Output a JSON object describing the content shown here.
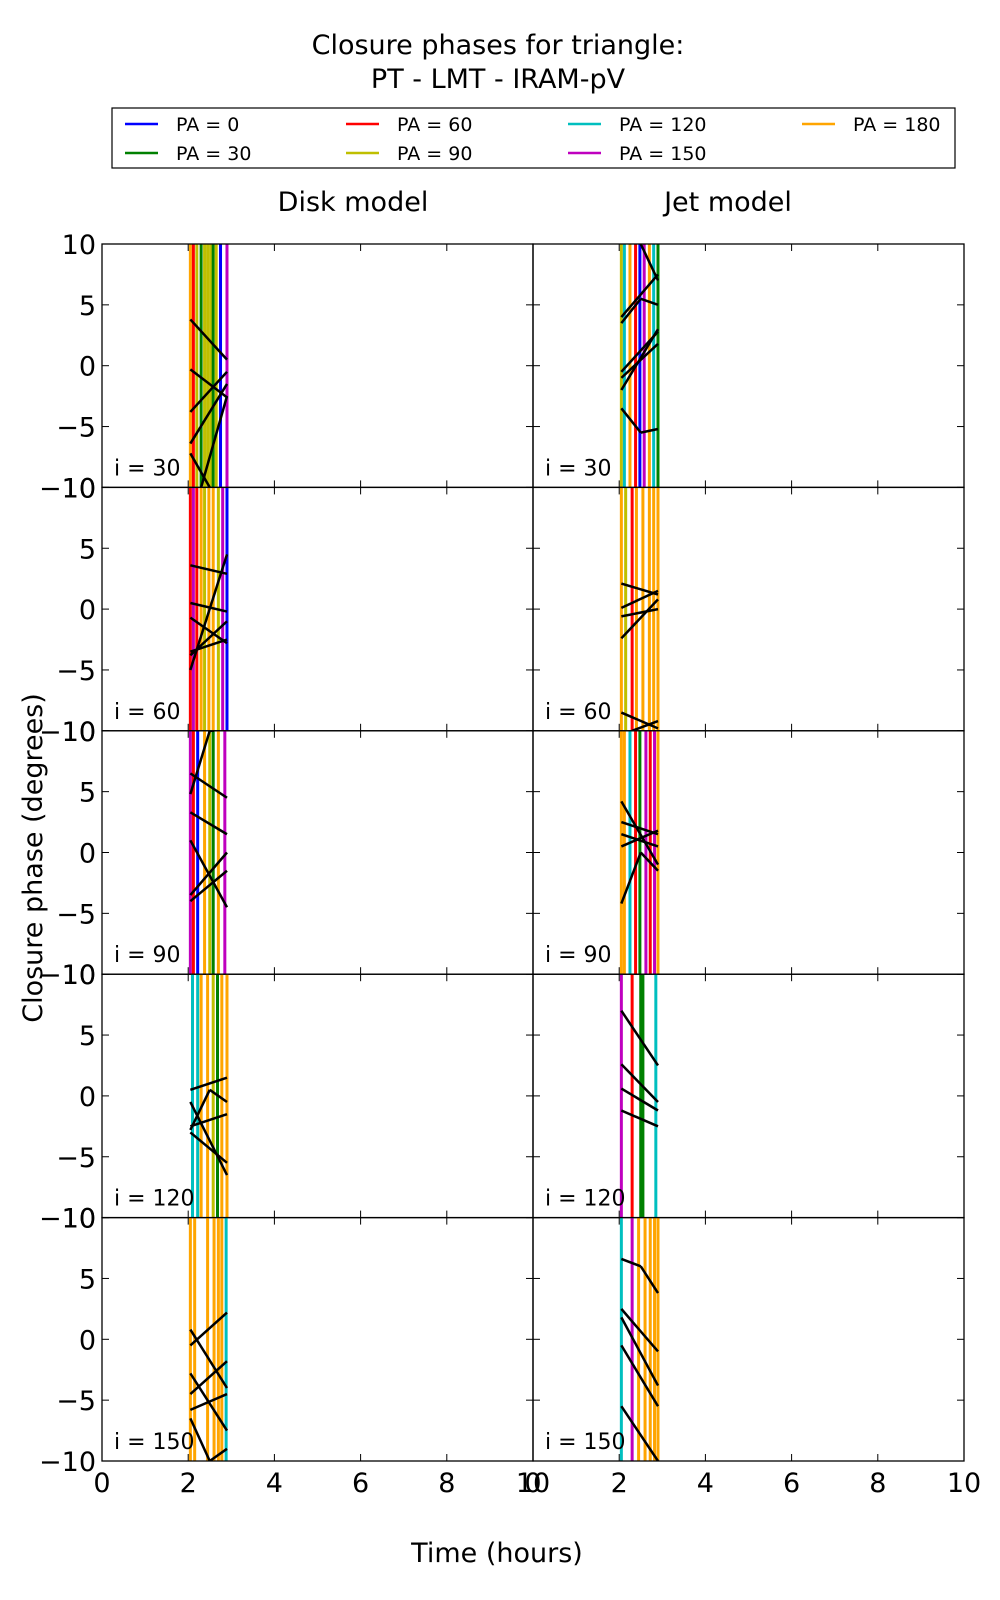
{
  "chart_data": {
    "type": "line",
    "title_lines": [
      "Closure phases for triangle:",
      "PT - LMT - IRAM-pV"
    ],
    "xlabel": "Time (hours)",
    "ylabel": "Closure phase (degrees)",
    "xlim": [
      0,
      10
    ],
    "ylim": [
      -10,
      10
    ],
    "xticks": [
      0,
      2,
      4,
      6,
      8,
      10
    ],
    "yticks": [
      10,
      5,
      0,
      -5,
      -10
    ],
    "grid": false,
    "legend": {
      "placement": "top",
      "entries": [
        {
          "label": "PA = 0",
          "color": "#0000ff"
        },
        {
          "label": "PA = 30",
          "color": "#008000"
        },
        {
          "label": "PA = 60",
          "color": "#ff0000"
        },
        {
          "label": "PA = 90",
          "color": "#bfbf00"
        },
        {
          "label": "PA = 120",
          "color": "#00bfbf"
        },
        {
          "label": "PA = 150",
          "color": "#bf00bf"
        },
        {
          "label": "PA = 180",
          "color": "#ffa500"
        }
      ]
    },
    "columns": [
      "Disk model",
      "Jet model"
    ],
    "rows": [
      "i = 30",
      "i = 60",
      "i = 90",
      "i = 120",
      "i = 150"
    ],
    "panels": [
      {
        "row": 0,
        "col": 0,
        "vlines": [
          [
            2.05,
            "#ffa500"
          ],
          [
            2.12,
            "#ff0000"
          ],
          [
            2.2,
            "#bfbf00"
          ],
          [
            2.3,
            "#008000"
          ],
          [
            2.38,
            "#bfbf00"
          ],
          [
            2.45,
            "#bfbf00"
          ],
          [
            2.52,
            "#bfbf00"
          ],
          [
            2.58,
            "#008000"
          ],
          [
            2.65,
            "#bfbf00"
          ],
          [
            2.75,
            "#0000ff"
          ],
          [
            2.9,
            "#bf00bf"
          ]
        ],
        "segments": [
          [
            2.05,
            3.8,
            2.9,
            0.5
          ],
          [
            2.05,
            -0.3,
            2.9,
            -2.6
          ],
          [
            2.05,
            -3.8,
            2.9,
            -0.5
          ],
          [
            2.05,
            -6.4,
            2.9,
            -1.5
          ],
          [
            2.05,
            -7.2,
            2.5,
            -10
          ],
          [
            2.3,
            -10,
            2.9,
            -2.5
          ]
        ]
      },
      {
        "row": 0,
        "col": 1,
        "vlines": [
          [
            2.05,
            "#bfbf00"
          ],
          [
            2.12,
            "#00bfbf"
          ],
          [
            2.25,
            "#ffa500"
          ],
          [
            2.38,
            "#ff0000"
          ],
          [
            2.48,
            "#0000ff"
          ],
          [
            2.58,
            "#bf00bf"
          ],
          [
            2.7,
            "#ffa500"
          ],
          [
            2.8,
            "#00bfbf"
          ],
          [
            2.9,
            "#008000"
          ]
        ],
        "segments": [
          [
            2.05,
            4.0,
            2.9,
            7.5
          ],
          [
            2.05,
            3.5,
            2.5,
            5.5
          ],
          [
            2.5,
            5.5,
            2.9,
            5.0
          ],
          [
            2.05,
            -0.5,
            2.9,
            2.8
          ],
          [
            2.05,
            -1.0,
            2.9,
            1.8
          ],
          [
            2.05,
            -2.0,
            2.9,
            3.0
          ],
          [
            2.05,
            -3.5,
            2.5,
            -5.5
          ],
          [
            2.5,
            -5.5,
            2.9,
            -5.2
          ],
          [
            2.5,
            10,
            2.9,
            7.0
          ]
        ]
      },
      {
        "row": 1,
        "col": 0,
        "vlines": [
          [
            2.05,
            "#ff0000"
          ],
          [
            2.12,
            "#bf00bf"
          ],
          [
            2.2,
            "#ff0000"
          ],
          [
            2.3,
            "#ffa500"
          ],
          [
            2.38,
            "#bfbf00"
          ],
          [
            2.48,
            "#ffa500"
          ],
          [
            2.58,
            "#ffa500"
          ],
          [
            2.7,
            "#bfbf00"
          ],
          [
            2.8,
            "#bf00bf"
          ],
          [
            2.9,
            "#0000ff"
          ]
        ],
        "segments": [
          [
            2.05,
            3.6,
            2.9,
            2.9
          ],
          [
            2.05,
            0.5,
            2.9,
            -0.2
          ],
          [
            2.05,
            -0.7,
            2.9,
            -2.8
          ],
          [
            2.05,
            -3.8,
            2.9,
            -1.0
          ],
          [
            2.05,
            -3.5,
            2.9,
            -2.5
          ],
          [
            2.05,
            -5.0,
            2.9,
            4.5
          ]
        ]
      },
      {
        "row": 1,
        "col": 1,
        "vlines": [
          [
            2.05,
            "#ffa500"
          ],
          [
            2.15,
            "#bfbf00"
          ],
          [
            2.3,
            "#ff0000"
          ],
          [
            2.4,
            "#ffa500"
          ],
          [
            2.55,
            "#ffa500"
          ],
          [
            2.7,
            "#ffa500"
          ],
          [
            2.8,
            "#ffa500"
          ],
          [
            2.9,
            "#ffa500"
          ]
        ],
        "segments": [
          [
            2.05,
            -8.5,
            2.9,
            -9.8
          ],
          [
            2.05,
            2.1,
            2.9,
            1.2
          ],
          [
            2.05,
            0.1,
            2.9,
            1.5
          ],
          [
            2.05,
            -0.6,
            2.9,
            0.0
          ],
          [
            2.05,
            -2.4,
            2.9,
            0.8
          ],
          [
            2.3,
            -10,
            2.9,
            -9.2
          ]
        ]
      },
      {
        "row": 2,
        "col": 0,
        "vlines": [
          [
            2.05,
            "#bf00bf"
          ],
          [
            2.12,
            "#ff0000"
          ],
          [
            2.22,
            "#0000ff"
          ],
          [
            2.38,
            "#ffa500"
          ],
          [
            2.5,
            "#bfbf00"
          ],
          [
            2.58,
            "#008000"
          ],
          [
            2.7,
            "#ffa500"
          ],
          [
            2.85,
            "#bf00bf"
          ]
        ],
        "segments": [
          [
            2.05,
            4.8,
            2.5,
            10
          ],
          [
            2.05,
            6.5,
            2.9,
            4.5
          ],
          [
            2.05,
            3.3,
            2.9,
            1.5
          ],
          [
            2.05,
            1.0,
            2.9,
            -4.5
          ],
          [
            2.05,
            -3.5,
            2.9,
            0.0
          ],
          [
            2.05,
            -4.0,
            2.9,
            -1.5
          ],
          [
            2.5,
            10,
            2.6,
            10
          ]
        ]
      },
      {
        "row": 2,
        "col": 1,
        "vlines": [
          [
            2.05,
            "#ffa500"
          ],
          [
            2.12,
            "#ffa500"
          ],
          [
            2.25,
            "#00bfbf"
          ],
          [
            2.38,
            "#ff0000"
          ],
          [
            2.48,
            "#008000"
          ],
          [
            2.62,
            "#bf00bf"
          ],
          [
            2.72,
            "#ff0000"
          ],
          [
            2.82,
            "#bf00bf"
          ],
          [
            2.9,
            "#ffa500"
          ]
        ],
        "segments": [
          [
            2.05,
            4.2,
            2.9,
            -1.0
          ],
          [
            2.05,
            2.5,
            2.9,
            1.5
          ],
          [
            2.05,
            1.5,
            2.9,
            0.5
          ],
          [
            2.05,
            0.5,
            2.9,
            1.8
          ],
          [
            2.05,
            -4.2,
            2.5,
            0.0
          ],
          [
            2.5,
            0.0,
            2.9,
            -1.5
          ]
        ]
      },
      {
        "row": 3,
        "col": 0,
        "vlines": [
          [
            2.1,
            "#00bfbf"
          ],
          [
            2.22,
            "#00bfbf"
          ],
          [
            2.3,
            "#ffa500"
          ],
          [
            2.45,
            "#ffa500"
          ],
          [
            2.58,
            "#bfbf00"
          ],
          [
            2.68,
            "#008000"
          ],
          [
            2.78,
            "#ffa500"
          ],
          [
            2.9,
            "#ffa500"
          ]
        ],
        "segments": [
          [
            2.05,
            0.5,
            2.9,
            1.5
          ],
          [
            2.05,
            -0.5,
            2.9,
            -6.5
          ],
          [
            2.05,
            -2.5,
            2.9,
            -1.5
          ],
          [
            2.05,
            -2.8,
            2.5,
            0.5
          ],
          [
            2.5,
            0.5,
            2.9,
            -0.5
          ],
          [
            2.05,
            -3.0,
            2.9,
            -5.5
          ]
        ]
      },
      {
        "row": 3,
        "col": 1,
        "vlines": [
          [
            2.05,
            "#bf00bf"
          ],
          [
            2.3,
            "#ff0000"
          ],
          [
            2.5,
            "#008000"
          ],
          [
            2.55,
            "#008000"
          ],
          [
            2.85,
            "#00bfbf"
          ]
        ],
        "segments": [
          [
            2.05,
            7.0,
            2.9,
            2.5
          ],
          [
            2.05,
            2.6,
            2.9,
            -0.5
          ],
          [
            2.05,
            0.6,
            2.9,
            -1.2
          ],
          [
            2.05,
            -1.2,
            2.9,
            -2.5
          ]
        ]
      },
      {
        "row": 4,
        "col": 0,
        "vlines": [
          [
            2.05,
            "#ffa500"
          ],
          [
            2.15,
            "#ffa500"
          ],
          [
            2.45,
            "#ffa500"
          ],
          [
            2.6,
            "#ffa500"
          ],
          [
            2.7,
            "#ffa500"
          ],
          [
            2.78,
            "#ffa500"
          ],
          [
            2.88,
            "#00bfbf"
          ]
        ],
        "segments": [
          [
            2.05,
            0.8,
            2.9,
            -4.0
          ],
          [
            2.05,
            -0.5,
            2.9,
            2.2
          ],
          [
            2.05,
            -2.8,
            2.9,
            -7.5
          ],
          [
            2.05,
            -4.5,
            2.9,
            -1.8
          ],
          [
            2.05,
            -5.8,
            2.9,
            -4.5
          ],
          [
            2.05,
            -6.5,
            2.5,
            -10
          ],
          [
            2.5,
            -10,
            2.9,
            -9.0
          ]
        ]
      },
      {
        "row": 4,
        "col": 1,
        "vlines": [
          [
            2.05,
            "#00bfbf"
          ],
          [
            2.3,
            "#bf00bf"
          ],
          [
            2.45,
            "#ffa500"
          ],
          [
            2.6,
            "#ffa500"
          ],
          [
            2.72,
            "#ffa500"
          ],
          [
            2.82,
            "#ffa500"
          ],
          [
            2.9,
            "#ffa500"
          ]
        ],
        "segments": [
          [
            2.05,
            6.6,
            2.5,
            6.0
          ],
          [
            2.5,
            6.0,
            2.9,
            3.8
          ],
          [
            2.05,
            2.5,
            2.9,
            -1.0
          ],
          [
            2.05,
            1.8,
            2.9,
            -3.8
          ],
          [
            2.05,
            -0.5,
            2.9,
            -5.5
          ],
          [
            2.05,
            -5.5,
            2.9,
            -10
          ]
        ]
      }
    ]
  }
}
